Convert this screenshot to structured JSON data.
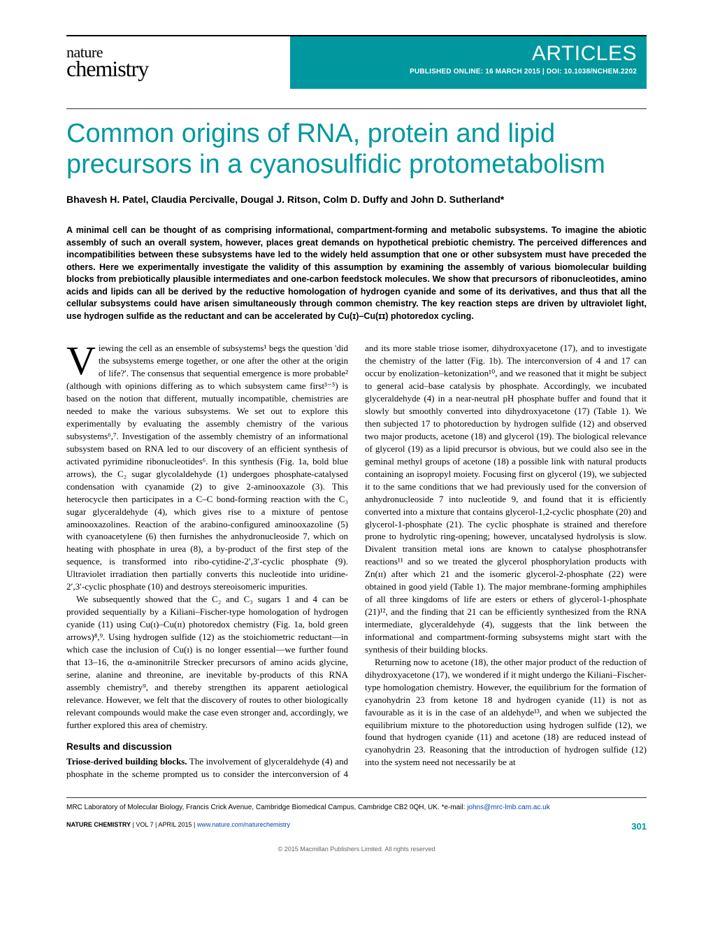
{
  "colors": {
    "accent": "#00989e",
    "link": "#0645ad",
    "text": "#000000",
    "background": "#ffffff",
    "copyright": "#666666"
  },
  "typography": {
    "body_family": "Georgia, 'Times New Roman', serif",
    "sans_family": "Arial, Helvetica, sans-serif",
    "title_size_pt": 38,
    "body_size_pt": 13,
    "abstract_size_pt": 12.5
  },
  "header": {
    "journal_top": "nature",
    "journal_bottom": "chemistry",
    "section_label": "ARTICLES",
    "pub_prefix": "PUBLISHED ONLINE: 16 MARCH 2015 | ",
    "doi_label": "DOI: 10.1038/NCHEM.2202"
  },
  "article": {
    "title": "Common origins of RNA, protein and lipid precursors in a cyanosulfidic protometabolism",
    "authors": "Bhavesh H. Patel, Claudia Percivalle, Dougal J. Ritson, Colm D. Duffy and John D. Sutherland*",
    "abstract": "A minimal cell can be thought of as comprising informational, compartment-forming and metabolic subsystems. To imagine the abiotic assembly of such an overall system, however, places great demands on hypothetical prebiotic chemistry. The perceived differences and incompatibilities between these subsystems have led to the widely held assumption that one or other subsystem must have preceded the others. Here we experimentally investigate the validity of this assumption by examining the assembly of various biomolecular building blocks from prebiotically plausible intermediates and one-carbon feedstock molecules. We show that precursors of ribonucleotides, amino acids and lipids can all be derived by the reductive homologation of hydrogen cyanide and some of its derivatives, and thus that all the cellular subsystems could have arisen simultaneously through common chemistry. The key reaction steps are driven by ultraviolet light, use hydrogen sulfide as the reductant and can be accelerated by Cu(ɪ)–Cu(ɪɪ) photoredox cycling."
  },
  "body": {
    "dropcap": "V",
    "p1": "iewing the cell as an ensemble of subsystems¹ begs the question 'did the subsystems emerge together, or one after the other at the origin of life?'. The consensus that sequential emergence is more probable² (although with opinions differing as to which subsystem came first³⁻⁵) is based on the notion that different, mutually incompatible, chemistries are needed to make the various subsystems. We set out to explore this experimentally by evaluating the assembly chemistry of the various subsystems⁶,⁷. Investigation of the assembly chemistry of an informational subsystem based on RNA led to our discovery of an efficient synthesis of activated pyrimidine ribonucleotides⁶. In this synthesis (Fig. 1a, bold blue arrows), the C₂ sugar glycolaldehyde (1) undergoes phosphate-catalysed condensation with cyanamide (2) to give 2-aminooxazole (3). This heterocycle then participates in a C–C bond-forming reaction with the C₃ sugar glyceraldehyde (4), which gives rise to a mixture of pentose aminooxazolines. Reaction of the arabino-configured aminooxazoline (5) with cyanoacetylene (6) then furnishes the anhydronucleoside 7, which on heating with phosphate in urea (8), a by-product of the first step of the sequence, is transformed into ribo-cytidine-2′,3′-cyclic phosphate (9). Ultraviolet irradiation then partially converts this nucleotide into uridine-2′,3′-cyclic phosphate (10) and destroys stereoisomeric impurities.",
    "p2": "We subsequently showed that the C₂ and C₃ sugars 1 and 4 can be provided sequentially by a Kiliani–Fischer-type homologation of hydrogen cyanide (11) using Cu(ɪ)–Cu(ɪɪ) photoredox chemistry (Fig. 1a, bold green arrows)⁸,⁹. Using hydrogen sulfide (12) as the stoichiometric reductant—in which case the inclusion of Cu(ɪ) is no longer essential—we further found that 13–16, the α-aminonitrile Strecker precursors of amino acids glycine, serine, alanine and threonine, are inevitable by-products of this RNA assembly chemistry⁹, and thereby strengthen its apparent aetiological relevance. However, we felt that the discovery of routes to other biologically relevant compounds would make the case even stronger and, accordingly, we further explored this area of chemistry.",
    "section1_heading": "Results and discussion",
    "p3_runin": "Triose-derived building blocks.",
    "p3": " The involvement of glyceraldehyde (4) and phosphate in the scheme prompted us to consider the interconversion of 4 and its more stable triose isomer, dihydroxyacetone (17), and to investigate the chemistry of the latter (Fig. 1b). The interconversion of 4 and 17 can occur by enolization–ketonization¹⁰, and we reasoned that it might be subject to general acid–base catalysis by phosphate. Accordingly, we incubated glyceraldehyde (4) in a near-neutral pH phosphate buffer and found that it slowly but smoothly converted into dihydroxyacetone (17) (Table 1). We then subjected 17 to photoreduction by hydrogen sulfide (12) and observed two major products, acetone (18) and glycerol (19). The biological relevance of glycerol (19) as a lipid precursor is obvious, but we could also see in the geminal methyl groups of acetone (18) a possible link with natural products containing an isopropyl moiety. Focusing first on glycerol (19), we subjected it to the same conditions that we had previously used for the conversion of anhydronucleoside 7 into nucleotide 9, and found that it is efficiently converted into a mixture that contains glycerol-1,2-cyclic phosphate (20) and glycerol-1-phosphate (21). The cyclic phosphate is strained and therefore prone to hydrolytic ring-opening; however, uncatalysed hydrolysis is slow. Divalent transition metal ions are known to catalyse phosphotransfer reactions¹¹ and so we treated the glycerol phosphorylation products with Zn(ɪɪ) after which 21 and the isomeric glycerol-2-phosphate (22) were obtained in good yield (Table 1). The major membrane-forming amphiphiles of all three kingdoms of life are esters or ethers of glycerol-1-phosphate (21)¹², and the finding that 21 can be efficiently synthesized from the RNA intermediate, glyceraldehyde (4), suggests that the link between the informational and compartment-forming subsystems might start with the synthesis of their building blocks.",
    "p4": "Returning now to acetone (18), the other major product of the reduction of dihydroxyacetone (17), we wondered if it might undergo the Kiliani–Fischer-type homologation chemistry. However, the equilibrium for the formation of cyanohydrin 23 from ketone 18 and hydrogen cyanide (11) is not as favourable as it is in the case of an aldehyde¹³, and when we subjected the equilibrium mixture to the photoreduction using hydrogen sulfide (12), we found that hydrogen cyanide (11) and acetone (18) are reduced instead of cyanohydrin 23. Reasoning that the introduction of hydrogen sulfide (12) into the system need not necessarily be at"
  },
  "footer": {
    "affiliation_text": "MRC Laboratory of Molecular Biology, Francis Crick Avenue, Cambridge Biomedical Campus, Cambridge CB2 0QH, UK. *e-mail: ",
    "email": "johns@mrc-lmb.cam.ac.uk",
    "brand": "NATURE CHEMISTRY",
    "issue": " | VOL 7 | APRIL 2015 | ",
    "url": "www.nature.com/naturechemistry",
    "page_number": "301",
    "copyright": "© 2015 Macmillan Publishers Limited. All rights reserved"
  }
}
